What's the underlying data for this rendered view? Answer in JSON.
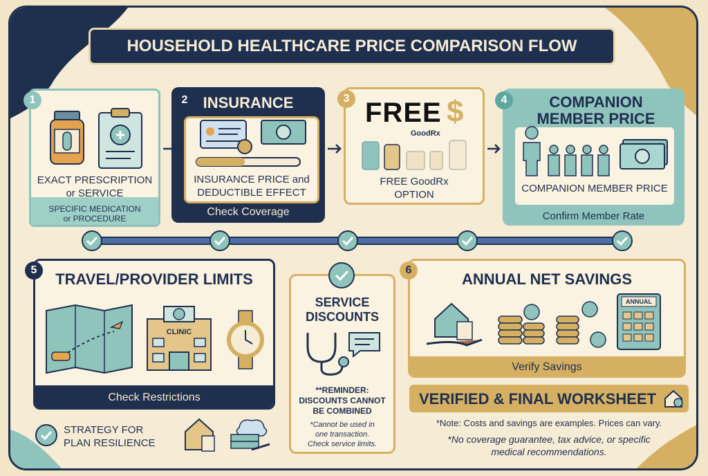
{
  "header": {
    "title": "HOUSEHOLD HEALTHCARE PRICE COMPARISON FLOW"
  },
  "steps": [
    {
      "number": "1",
      "label": [
        "EXACT PRESCRIPTION",
        "or SERVICE"
      ],
      "detail": [
        "SPECIFIC MEDICATION",
        "or PROCEDURE"
      ]
    },
    {
      "number": "2",
      "heading": "INSURANCE",
      "label": [
        "INSURANCE PRICE and",
        "DEDUCTIBLE EFFECT"
      ],
      "action": "Check Coverage"
    },
    {
      "number": "3",
      "heading": "FREE",
      "symbol": "$",
      "brand": "GoodRx",
      "label": [
        "FREE GoodRx",
        "OPTION"
      ]
    },
    {
      "number": "4",
      "heading": [
        "COMPANION",
        "MEMBER PRICE"
      ],
      "label": "COMPANION MEMBER PRICE",
      "action": "Confirm Member Rate"
    },
    {
      "number": "5",
      "heading": "TRAVEL/PROVIDER LIMITS",
      "icon_label": "CLINIC",
      "action": "Check Restrictions"
    },
    {
      "number": "6",
      "heading": "ANNUAL NET SAVINGS",
      "icon_label": "ANNUAL",
      "action": "Verify Savings"
    }
  ],
  "service_discounts": {
    "heading": [
      "SERVICE",
      "DISCOUNTS"
    ],
    "reminder": [
      "**REMINDER:",
      "DISCOUNTS CANNOT",
      "BE COMBINED"
    ],
    "note": [
      "*Cannot be used in",
      "one transaction.",
      "Check service limits."
    ]
  },
  "final": {
    "title": "VERIFIED & FINAL WORKSHEET"
  },
  "strategy": {
    "label": [
      "STRATEGY FOR",
      "PLAN RESILIENCE"
    ]
  },
  "notes": {
    "examples": "*Note: Costs and savings are examples. Prices can vary.",
    "disclaimer": [
      "*No coverage guarantee, tax advice, or specific",
      "medical recommendations."
    ]
  }
}
